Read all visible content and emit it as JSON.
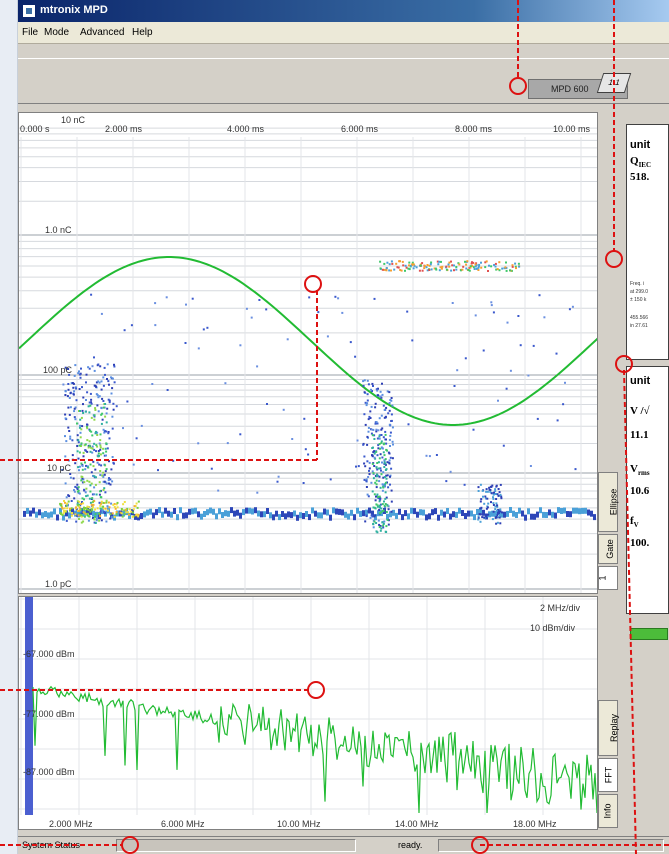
{
  "window": {
    "title": "mtronix MPD"
  },
  "menu": [
    "File",
    "Mode",
    "Advanced",
    "Help"
  ],
  "device": {
    "label": "MPD 600",
    "icon_text": "1.1"
  },
  "scope_top": {
    "time_labels": [
      "0.000 s",
      "2.000 ms",
      "4.000 ms",
      "6.000 ms",
      "8.000 ms",
      "10.00 ms"
    ],
    "charge_labels": [
      "10 nC",
      "1.0 nC",
      "100 pC",
      "10 pC",
      "1.0 pC"
    ]
  },
  "scope_bottom": {
    "scale": [
      "2 MHz/div",
      "10 dBm/div"
    ],
    "dbm_labels": [
      "-67.000 dBm",
      "-77.000 dBm",
      "-87.000 dBm"
    ],
    "freq_labels": [
      "2.000 MHz",
      "6.000 MHz",
      "10.00 MHz",
      "14.00 MHz",
      "18.00 MHz"
    ]
  },
  "tabs_top": [
    "Ellipse",
    "Gate",
    "1"
  ],
  "tabs_bottom": [
    "Replay",
    "FFT",
    "Info"
  ],
  "panel_charge": {
    "unit": "unit",
    "symbol": "Q",
    "subscript": "IEC",
    "value": "518.",
    "notes": [
      "Freq. i",
      "at 299.0",
      "± 150 k",
      "455.566",
      "in 27.61"
    ]
  },
  "panel_voltage": {
    "unit": "unit",
    "v1_symbol": "V /√",
    "v1_value": "11.1",
    "v2_symbol": "V",
    "v2_sub": "rms",
    "v2_value": "10.6",
    "v3_symbol": "f",
    "v3_sub": "V",
    "v3_value": "100."
  },
  "status": {
    "left": "System Status",
    "mid": "ready."
  },
  "colors": {
    "accent": "#0a246a",
    "trace": "#22bb33",
    "annotation": "#dd1111"
  }
}
